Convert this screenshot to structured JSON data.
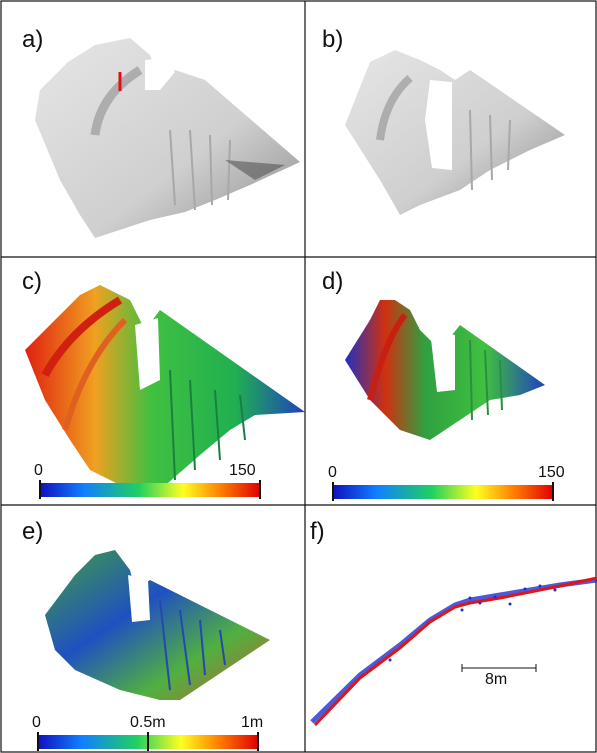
{
  "panels": [
    {
      "label": "a)"
    },
    {
      "label": "b)"
    },
    {
      "label": "c)",
      "colorbar": {
        "min": "0",
        "max": "150"
      }
    },
    {
      "label": "d)",
      "colorbar": {
        "min": "0",
        "max": "150"
      }
    },
    {
      "label": "e)",
      "colorbar": {
        "min": "0",
        "mid": "0.5m",
        "max": "1m"
      }
    },
    {
      "label": "f)",
      "scalebar": "8m"
    }
  ],
  "colors": {
    "profile_line": "#e01010",
    "cloud_red": "#e01515",
    "cloud_blue": "#2030d0",
    "colormap": [
      "#1010c0",
      "#1080ff",
      "#20d060",
      "#ffff20",
      "#ff8000",
      "#e00000"
    ]
  }
}
